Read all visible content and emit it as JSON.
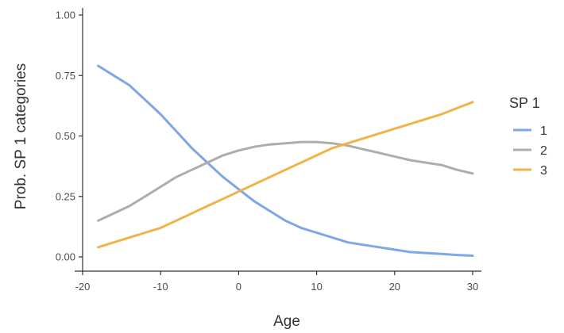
{
  "chart_data": {
    "type": "line",
    "title": "",
    "xlabel": "Age",
    "ylabel": "Prob. SP 1 categories",
    "xlim": [
      -20,
      30
    ],
    "ylim": [
      0,
      1
    ],
    "x_ticks": [
      "-20",
      "-10",
      "0",
      "10",
      "20",
      "30"
    ],
    "y_ticks": [
      "0.00",
      "0.25",
      "0.50",
      "0.75",
      "1.00"
    ],
    "grid": false,
    "legend": {
      "title": "SP 1",
      "position": "right"
    },
    "x": [
      -18,
      -16,
      -14,
      -12,
      -10,
      -8,
      -6,
      -4,
      -2,
      0,
      2,
      4,
      6,
      8,
      10,
      12,
      14,
      16,
      18,
      20,
      22,
      24,
      26,
      28,
      30
    ],
    "series": [
      {
        "name": "1",
        "color": "#7ea6e8",
        "values": [
          0.79,
          0.75,
          0.71,
          0.65,
          0.59,
          0.52,
          0.45,
          0.39,
          0.33,
          0.28,
          0.23,
          0.19,
          0.15,
          0.12,
          0.1,
          0.08,
          0.06,
          0.05,
          0.04,
          0.03,
          0.02,
          0.016,
          0.012,
          0.008,
          0.005
        ]
      },
      {
        "name": "2",
        "color": "#adadad",
        "values": [
          0.15,
          0.18,
          0.21,
          0.25,
          0.29,
          0.33,
          0.36,
          0.39,
          0.42,
          0.44,
          0.455,
          0.465,
          0.47,
          0.475,
          0.475,
          0.47,
          0.46,
          0.445,
          0.43,
          0.415,
          0.4,
          0.39,
          0.38,
          0.36,
          0.345
        ]
      },
      {
        "name": "3",
        "color": "#f0b24a",
        "values": [
          0.04,
          0.06,
          0.08,
          0.1,
          0.12,
          0.15,
          0.18,
          0.21,
          0.24,
          0.27,
          0.3,
          0.33,
          0.36,
          0.39,
          0.42,
          0.45,
          0.47,
          0.49,
          0.51,
          0.53,
          0.55,
          0.57,
          0.59,
          0.615,
          0.64
        ]
      }
    ]
  }
}
